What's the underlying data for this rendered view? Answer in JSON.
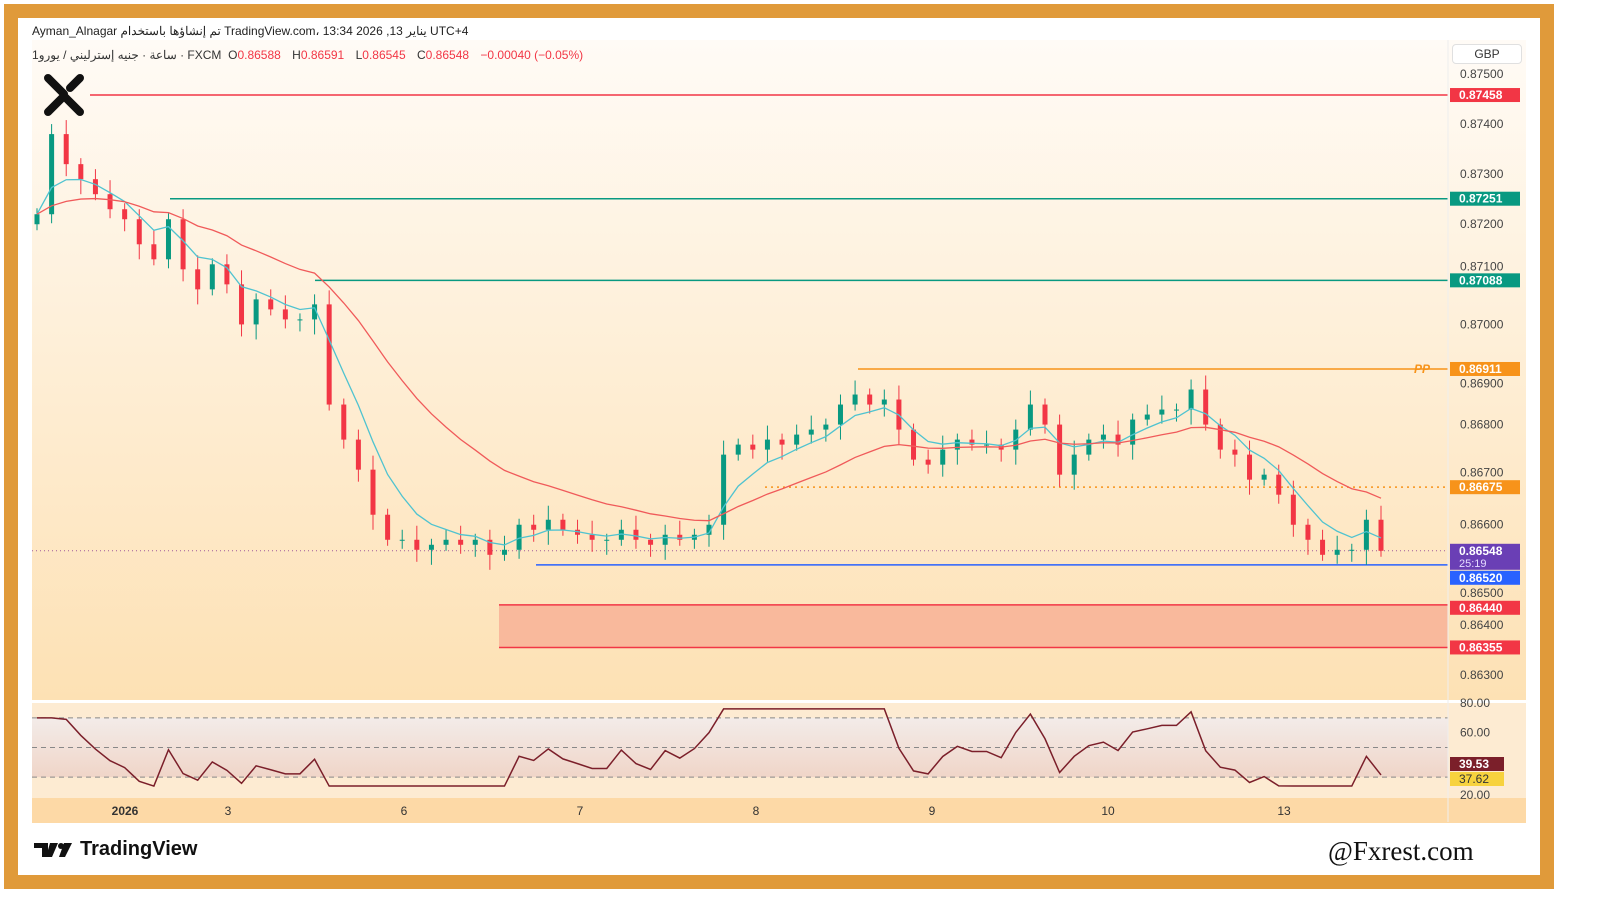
{
  "header": {
    "title": "Ayman_Alnagar تم إنشاؤها باستخدام TradingView.com، 13:34 2026 ,13 يناير UTC+4",
    "symbol": "1ساعة · جنيه إسترليني / يورو · FXCM",
    "o_label": "O",
    "o": "0.86588",
    "h_label": "H",
    "h": "0.86591",
    "l_label": "L",
    "l": "0.86545",
    "c_label": "C",
    "c": "0.86548",
    "change": "−0.00040 (−0.05%)"
  },
  "currency_button": "GBP",
  "footer": {
    "logo_text": "TradingView",
    "watermark": "@Fxrest.com"
  },
  "colors": {
    "up": "#089981",
    "down": "#f23645",
    "ema_fast": "#4fc3d0",
    "ema_slow": "#f05a5a",
    "frame": "#e09a3a",
    "pp": "#f7931a",
    "support": "#2962ff",
    "rsi": "#7b1f2a"
  },
  "chart_data": {
    "type": "candlestick",
    "price_axis": {
      "ticks": [
        "0.87500",
        "0.87400",
        "0.87300",
        "0.87200",
        "0.87100",
        "0.87000",
        "0.86900",
        "0.86800",
        "0.86700",
        "0.86600",
        "0.86500",
        "0.86400",
        "0.86300"
      ],
      "range": [
        0.8628,
        0.8752
      ]
    },
    "time_axis": {
      "ticks": [
        "2026",
        "3",
        "6",
        "7",
        "8",
        "9",
        "10",
        "13"
      ]
    },
    "close": [
      0.8722,
      0.8738,
      0.8732,
      0.8729,
      0.8726,
      0.8723,
      0.8721,
      0.8716,
      0.8713,
      0.8721,
      0.8711,
      0.8707,
      0.8712,
      0.8708,
      0.87,
      0.8705,
      0.8703,
      0.8701,
      0.8701,
      0.8704,
      0.8684,
      0.8677,
      0.8671,
      0.8662,
      0.8657,
      0.8657,
      0.8655,
      0.8656,
      0.8657,
      0.8656,
      0.8657,
      0.8654,
      0.8655,
      0.866,
      0.8659,
      0.8661,
      0.8659,
      0.8658,
      0.8657,
      0.8657,
      0.8659,
      0.8657,
      0.8656,
      0.8658,
      0.8657,
      0.8658,
      0.866,
      0.8674,
      0.8676,
      0.8675,
      0.8677,
      0.8676,
      0.8678,
      0.8679,
      0.868,
      0.8684,
      0.8686,
      0.8684,
      0.8685,
      0.8679,
      0.8673,
      0.8672,
      0.8675,
      0.8677,
      0.8676,
      0.8676,
      0.8675,
      0.8679,
      0.8684,
      0.868,
      0.867,
      0.8674,
      0.8677,
      0.8678,
      0.8676,
      0.8681,
      0.8682,
      0.8683,
      0.8683,
      0.8687,
      0.868,
      0.8675,
      0.8674,
      0.8669,
      0.867,
      0.8666,
      0.866,
      0.8657,
      0.8654,
      0.8655,
      0.8655,
      0.8661,
      0.86548
    ],
    "levels": [
      {
        "price": 0.87458,
        "label": "0.87458",
        "color": "#f23645",
        "style": "solid"
      },
      {
        "price": 0.87251,
        "label": "0.87251",
        "color": "#089981",
        "style": "solid"
      },
      {
        "price": 0.87088,
        "label": "0.87088",
        "color": "#089981",
        "style": "solid"
      },
      {
        "price": 0.86911,
        "label": "0.86911",
        "color": "#f7931a",
        "style": "solid",
        "name": "PP"
      },
      {
        "price": 0.86675,
        "label": "0.86675",
        "color": "#f7931a",
        "style": "dotted"
      },
      {
        "price": 0.8652,
        "label": "0.86520",
        "color": "#2962ff",
        "style": "solid"
      },
      {
        "price": 0.8644,
        "label": "0.86440",
        "color": "#f23645",
        "style": "solid"
      },
      {
        "price": 0.86355,
        "label": "0.86355",
        "color": "#f23645",
        "style": "solid"
      }
    ],
    "demand_zone": [
      0.86355,
      0.8644
    ],
    "last_price": {
      "price": 0.86548,
      "label": "0.86548",
      "countdown": "25:19"
    },
    "rsi": {
      "ticks": [
        "80.00",
        "60.00",
        "20.00"
      ],
      "value": "39.53",
      "ma_value": "37.62",
      "bands": [
        30,
        50,
        70
      ],
      "range": [
        20,
        80
      ]
    }
  }
}
